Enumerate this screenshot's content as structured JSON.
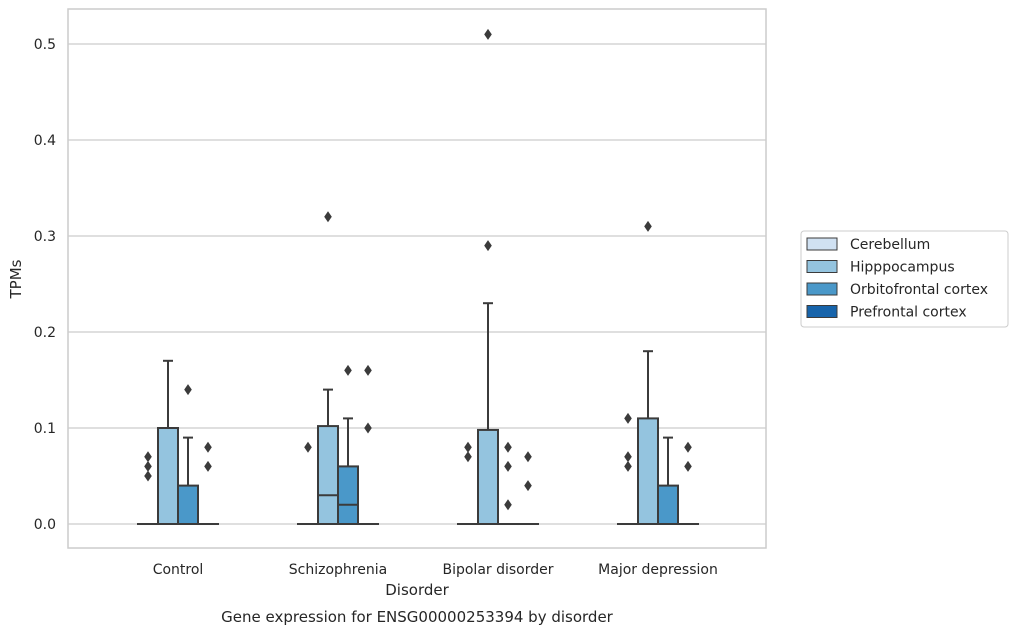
{
  "chart_data": {
    "type": "box",
    "caption": "Gene expression for ENSG00000253394 by disorder",
    "xlabel": "Disorder",
    "ylabel": "TPMs",
    "ylim": [
      -0.025,
      0.537
    ],
    "yticks": [
      "0.0",
      "0.1",
      "0.2",
      "0.3",
      "0.4",
      "0.5"
    ],
    "ytick_values": [
      0.0,
      0.1,
      0.2,
      0.3,
      0.4,
      0.5
    ],
    "grid": true,
    "legend_position": "right",
    "categories": [
      "Control",
      "Schizophrenia",
      "Bipolar disorder",
      "Major depression"
    ],
    "series": [
      {
        "name": "Cerebellum",
        "color": "#d0e1f2",
        "boxes": [
          {
            "min": 0.0,
            "q1": 0.0,
            "median": 0.0,
            "q3": 0.0,
            "max": 0.0,
            "outliers": [
              0.05,
              0.06,
              0.07
            ]
          },
          {
            "min": 0.0,
            "q1": 0.0,
            "median": 0.0,
            "q3": 0.0,
            "max": 0.0,
            "outliers": [
              0.08
            ]
          },
          {
            "min": 0.0,
            "q1": 0.0,
            "median": 0.0,
            "q3": 0.0,
            "max": 0.0,
            "outliers": [
              0.07,
              0.08
            ]
          },
          {
            "min": 0.0,
            "q1": 0.0,
            "median": 0.0,
            "q3": 0.0,
            "max": 0.0,
            "outliers": [
              0.06,
              0.07,
              0.11
            ]
          }
        ]
      },
      {
        "name": "Hipppocampus",
        "color": "#94c4df",
        "boxes": [
          {
            "min": 0.0,
            "q1": 0.0,
            "median": 0.0,
            "q3": 0.1,
            "max": 0.17,
            "outliers": []
          },
          {
            "min": 0.0,
            "q1": 0.0,
            "median": 0.03,
            "q3": 0.102,
            "max": 0.14,
            "outliers": [
              0.32
            ]
          },
          {
            "min": 0.0,
            "q1": 0.0,
            "median": 0.0,
            "q3": 0.098,
            "max": 0.23,
            "outliers": [
              0.29,
              0.51
            ]
          },
          {
            "min": 0.0,
            "q1": 0.0,
            "median": 0.0,
            "q3": 0.11,
            "max": 0.18,
            "outliers": [
              0.31
            ]
          }
        ]
      },
      {
        "name": "Orbitofrontal cortex",
        "color": "#4a98c9",
        "boxes": [
          {
            "min": 0.0,
            "q1": 0.0,
            "median": 0.0,
            "q3": 0.04,
            "max": 0.09,
            "outliers": [
              0.14
            ]
          },
          {
            "min": 0.0,
            "q1": 0.0,
            "median": 0.02,
            "q3": 0.06,
            "max": 0.11,
            "outliers": [
              0.16
            ]
          },
          {
            "min": 0.0,
            "q1": 0.0,
            "median": 0.0,
            "q3": 0.0,
            "max": 0.0,
            "outliers": [
              0.02,
              0.06,
              0.08
            ]
          },
          {
            "min": 0.0,
            "q1": 0.0,
            "median": 0.0,
            "q3": 0.04,
            "max": 0.09,
            "outliers": []
          }
        ]
      },
      {
        "name": "Prefrontal cortex",
        "color": "#1764ab",
        "boxes": [
          {
            "min": 0.0,
            "q1": 0.0,
            "median": 0.0,
            "q3": 0.0,
            "max": 0.0,
            "outliers": [
              0.06,
              0.08
            ]
          },
          {
            "min": 0.0,
            "q1": 0.0,
            "median": 0.0,
            "q3": 0.0,
            "max": 0.0,
            "outliers": [
              0.1,
              0.16
            ]
          },
          {
            "min": 0.0,
            "q1": 0.0,
            "median": 0.0,
            "q3": 0.0,
            "max": 0.0,
            "outliers": [
              0.04,
              0.07
            ]
          },
          {
            "min": 0.0,
            "q1": 0.0,
            "median": 0.0,
            "q3": 0.0,
            "max": 0.0,
            "outliers": [
              0.06,
              0.08
            ]
          }
        ]
      }
    ]
  },
  "style": {
    "grid_color": "#cccccc",
    "frame_color": "#cccccc",
    "line_color": "#3b3b3b"
  }
}
